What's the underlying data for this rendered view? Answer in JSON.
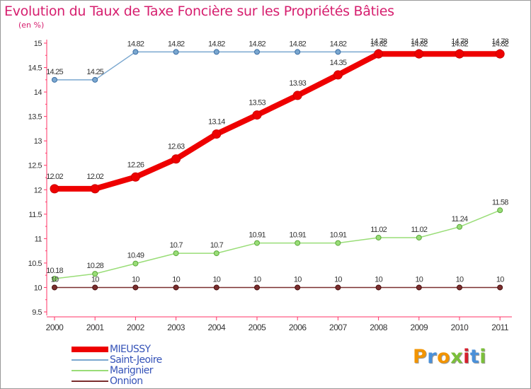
{
  "title": "Evolution du Taux de Taxe Foncière sur les Propriétés Bâties",
  "subtitle": "(en %)",
  "logo": {
    "text": "Proxiti",
    "colors": [
      "#f29400",
      "#4a90d9",
      "#f29400",
      "#7bbf3a",
      "#d6202e",
      "#4a90d9",
      "#7bbf3a"
    ]
  },
  "chart_data": {
    "type": "line",
    "x": [
      "2000",
      "2001",
      "2002",
      "2003",
      "2004",
      "2005",
      "2006",
      "2007",
      "2008",
      "2009",
      "2010",
      "2011"
    ],
    "ylim": [
      9.5,
      15
    ],
    "yticks": [
      "9.5",
      "10",
      "10.5",
      "11",
      "11.5",
      "12",
      "12.5",
      "13",
      "13.5",
      "14",
      "14.5",
      "15"
    ],
    "grid": false,
    "legend_position": "bottom-left",
    "series": [
      {
        "name": "Onnion",
        "color": "#7a2e2e",
        "values": [
          10,
          10,
          10,
          10,
          10,
          10,
          10,
          10,
          10,
          10,
          10,
          10
        ],
        "labels": [
          "10",
          "10",
          "10",
          "10",
          "10",
          "10",
          "10",
          "10",
          "10",
          "10",
          "10",
          "10"
        ]
      },
      {
        "name": "Marignier",
        "color": "#99dd77",
        "values": [
          10.18,
          10.28,
          10.49,
          10.7,
          10.7,
          10.91,
          10.91,
          10.91,
          11.02,
          11.02,
          11.24,
          11.58
        ],
        "labels": [
          "10.18",
          "10.28",
          "10.49",
          "10.7",
          "10.7",
          "10.91",
          "10.91",
          "10.91",
          "11.02",
          "11.02",
          "11.24",
          "11.58"
        ]
      },
      {
        "name": "Saint-Jeoire",
        "color": "#7aa7cf",
        "values": [
          14.25,
          14.25,
          14.82,
          14.82,
          14.82,
          14.82,
          14.82,
          14.82,
          14.82,
          14.82,
          14.82,
          14.82
        ],
        "labels": [
          "14.25",
          "14.25",
          "14.82",
          "14.82",
          "14.82",
          "14.82",
          "14.82",
          "14.82",
          "14.82",
          "14.82",
          "14.82",
          "14.82"
        ]
      },
      {
        "name": "MIEUSSY",
        "color": "#ee0000",
        "values": [
          12.02,
          12.02,
          12.26,
          12.63,
          13.14,
          13.53,
          13.93,
          14.35,
          14.78,
          14.78,
          14.78,
          14.78
        ],
        "labels": [
          "12.02",
          "12.02",
          "12.26",
          "12.63",
          "13.14",
          "13.53",
          "13.93",
          "14.35",
          "14.78",
          "14.78",
          "14.78",
          "14.78"
        ]
      }
    ],
    "legend": [
      "MIEUSSY",
      "Saint-Jeoire",
      "Marignier",
      "Onnion"
    ]
  }
}
